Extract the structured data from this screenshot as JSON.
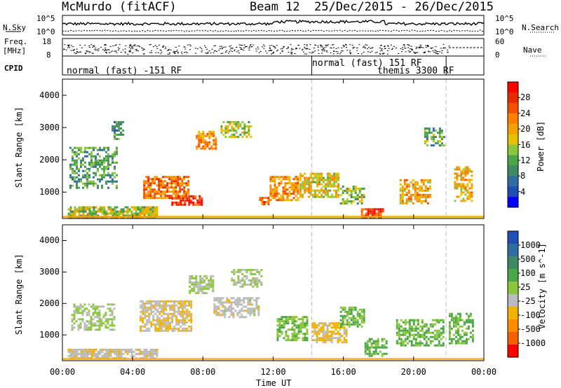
{
  "header": {
    "station": "McMurdo (fitACF)",
    "beam_date": "Beam 12  25/Dec/2015 - 26/Dec/2015"
  },
  "top_panels": {
    "nsky_label": "N.Sky",
    "nsearch_label": "N.Search",
    "nsky_ticks": [
      "10^5",
      "10^0"
    ],
    "nsky_right_ticks": [
      "10^5",
      "10^0"
    ],
    "freq_label_line1": "Freq.",
    "freq_label_line2": "[MHz]",
    "freq_ticks": [
      "18",
      "8"
    ],
    "nave_label": "Nave",
    "nave_ticks": [
      "60",
      "0"
    ],
    "cpid_label": "CPID",
    "cpid_segments": [
      {
        "line1": "normal (fast) -151 RF",
        "line2": ""
      },
      {
        "line1": "normal (fast) 151 RF",
        "line2": "themis 3300 RF"
      }
    ]
  },
  "chart_data": [
    {
      "type": "heatmap",
      "title": "",
      "xlabel": "Time UT",
      "ylabel": "Slant Range [km]",
      "x_ticks": [
        "00:00",
        "04:00",
        "08:00",
        "12:00",
        "16:00",
        "20:00",
        "00:00"
      ],
      "x_range_hours": [
        0,
        24
      ],
      "y_ticks": [
        "1000",
        "2000",
        "3000",
        "4000"
      ],
      "ylim": [
        180,
        4500
      ],
      "colorbar": {
        "label": "Power [dB]",
        "ticks": [
          "4",
          "8",
          "12",
          "16",
          "20",
          "24",
          "28"
        ],
        "range": [
          0,
          30
        ],
        "colors": [
          "#0000ff",
          "#1f4fb4",
          "#2e6ea0",
          "#3f8a63",
          "#4aa646",
          "#8cc63c",
          "#e5c000",
          "#f5a000",
          "#ff7f00",
          "#f55000",
          "#e42c00",
          "#ff0000"
        ]
      },
      "cpid_change_hours": [
        14.2,
        21.85
      ],
      "scatter_regions": [
        {
          "t0": 0.3,
          "t1": 5.5,
          "r0": 200,
          "r1": 560,
          "value": 14,
          "density": 0.8
        },
        {
          "t0": 0.4,
          "t1": 3.2,
          "r0": 1100,
          "r1": 2400,
          "value": 10,
          "density": 0.55
        },
        {
          "t0": 2.8,
          "t1": 3.5,
          "r0": 2600,
          "r1": 3200,
          "value": 9,
          "density": 0.5
        },
        {
          "t0": 4.6,
          "t1": 7.2,
          "r0": 800,
          "r1": 1500,
          "value": 22,
          "density": 0.75
        },
        {
          "t0": 6.2,
          "t1": 8.0,
          "r0": 600,
          "r1": 900,
          "value": 26,
          "density": 0.7
        },
        {
          "t0": 7.6,
          "t1": 8.8,
          "r0": 2300,
          "r1": 2900,
          "value": 20,
          "density": 0.7
        },
        {
          "t0": 9.0,
          "t1": 10.8,
          "r0": 2700,
          "r1": 3200,
          "value": 14,
          "density": 0.55
        },
        {
          "t0": 11.2,
          "t1": 11.8,
          "r0": 600,
          "r1": 850,
          "value": 24,
          "density": 0.7
        },
        {
          "t0": 11.8,
          "t1": 13.5,
          "r0": 700,
          "r1": 1500,
          "value": 20,
          "density": 0.7
        },
        {
          "t0": 13.5,
          "t1": 15.8,
          "r0": 800,
          "r1": 1600,
          "value": 17,
          "density": 0.7
        },
        {
          "t0": 15.8,
          "t1": 17.2,
          "r0": 600,
          "r1": 1200,
          "value": 13,
          "density": 0.6
        },
        {
          "t0": 17.0,
          "t1": 18.3,
          "r0": 180,
          "r1": 500,
          "value": 25,
          "density": 0.85
        },
        {
          "t0": 19.2,
          "t1": 21.0,
          "r0": 600,
          "r1": 1400,
          "value": 19,
          "density": 0.65
        },
        {
          "t0": 20.6,
          "t1": 21.8,
          "r0": 2400,
          "r1": 3000,
          "value": 11,
          "density": 0.55
        },
        {
          "t0": 22.3,
          "t1": 23.4,
          "r0": 700,
          "r1": 1800,
          "value": 18,
          "density": 0.6
        }
      ]
    },
    {
      "type": "heatmap",
      "title": "",
      "xlabel": "Time UT",
      "ylabel": "Slant Range [km]",
      "x_ticks": [
        "00:00",
        "04:00",
        "08:00",
        "12:00",
        "16:00",
        "20:00",
        "00:00"
      ],
      "x_range_hours": [
        0,
        24
      ],
      "y_ticks": [
        "1000",
        "2000",
        "3000",
        "4000"
      ],
      "ylim": [
        180,
        4500
      ],
      "colorbar": {
        "label": "Velocity [m s^-1]",
        "ticks": [
          "1000",
          "500",
          "100",
          "25",
          "-25",
          "-100",
          "-500",
          "-1000"
        ],
        "range": [
          -1200,
          1200
        ],
        "colors": [
          "#1f4fb4",
          "#2e6ea0",
          "#3f8a63",
          "#4aa646",
          "#8cc63c",
          "#bbbbbb",
          "#f2b000",
          "#ff8c00",
          "#f56000",
          "#ff0000"
        ]
      },
      "cpid_change_hours": [
        14.2,
        21.85
      ],
      "scatter_regions": [
        {
          "t0": 0.3,
          "t1": 5.5,
          "r0": 200,
          "r1": 560,
          "value": -150,
          "density": 0.8
        },
        {
          "t0": 0.5,
          "t1": 3.0,
          "r0": 1100,
          "r1": 2000,
          "value": 60,
          "density": 0.55
        },
        {
          "t0": 4.4,
          "t1": 7.4,
          "r0": 1100,
          "r1": 2100,
          "value": -200,
          "density": 0.7
        },
        {
          "t0": 7.2,
          "t1": 8.6,
          "r0": 2300,
          "r1": 2900,
          "value": 0,
          "density": 0.7
        },
        {
          "t0": 8.6,
          "t1": 11.2,
          "r0": 1500,
          "r1": 2200,
          "value": -120,
          "density": 0.6
        },
        {
          "t0": 9.6,
          "t1": 11.4,
          "r0": 2500,
          "r1": 3100,
          "value": 0,
          "density": 0.6
        },
        {
          "t0": 12.2,
          "t1": 14.0,
          "r0": 800,
          "r1": 1600,
          "value": 200,
          "density": 0.65
        },
        {
          "t0": 14.2,
          "t1": 16.2,
          "r0": 700,
          "r1": 1400,
          "value": -300,
          "density": 0.7
        },
        {
          "t0": 15.8,
          "t1": 17.2,
          "r0": 1200,
          "r1": 1900,
          "value": 250,
          "density": 0.65
        },
        {
          "t0": 17.2,
          "t1": 18.5,
          "r0": 300,
          "r1": 900,
          "value": 300,
          "density": 0.6
        },
        {
          "t0": 19.0,
          "t1": 21.8,
          "r0": 600,
          "r1": 1500,
          "value": 260,
          "density": 0.6
        },
        {
          "t0": 22.0,
          "t1": 23.4,
          "r0": 700,
          "r1": 1700,
          "value": 280,
          "density": 0.6
        }
      ]
    }
  ]
}
